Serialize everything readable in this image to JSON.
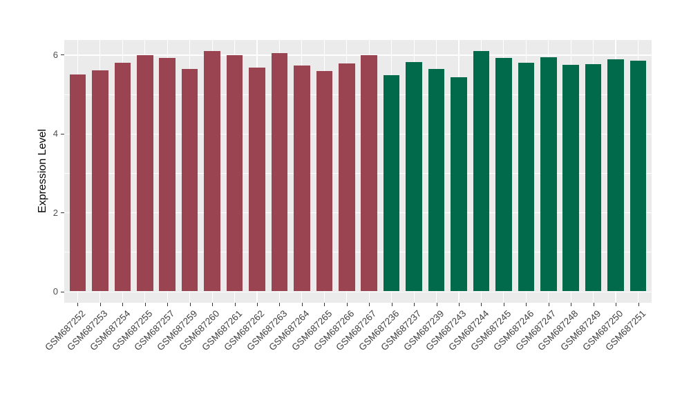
{
  "figure": {
    "background": "#FFFFFF",
    "panel_background": "#EBEBEB",
    "gridline_color": "#FFFFFF",
    "tick_color": "#333333",
    "tick_label_color": "#4D4D4D",
    "axis_title_color": "#000000"
  },
  "chart_data": {
    "type": "bar",
    "title": "",
    "xlabel": "",
    "ylabel": "Expression Level",
    "ylim": [
      -0.3,
      6.43
    ],
    "yticks_major": [
      0,
      2,
      4,
      6
    ],
    "yticks_minor": [
      1,
      3,
      5
    ],
    "grid": true,
    "legend_position": "none",
    "group_colors": {
      "maroon": "#9A4452",
      "green": "#016A4B"
    },
    "bars": [
      {
        "label": "GSM687252",
        "value": 5.5,
        "group": "maroon"
      },
      {
        "label": "GSM687253",
        "value": 5.61,
        "group": "maroon"
      },
      {
        "label": "GSM687254",
        "value": 5.79,
        "group": "maroon"
      },
      {
        "label": "GSM687255",
        "value": 5.99,
        "group": "maroon"
      },
      {
        "label": "GSM687257",
        "value": 5.92,
        "group": "maroon"
      },
      {
        "label": "GSM687259",
        "value": 5.64,
        "group": "maroon"
      },
      {
        "label": "GSM687260",
        "value": 6.1,
        "group": "maroon"
      },
      {
        "label": "GSM687261",
        "value": 5.99,
        "group": "maroon"
      },
      {
        "label": "GSM687262",
        "value": 5.67,
        "group": "maroon"
      },
      {
        "label": "GSM687263",
        "value": 6.04,
        "group": "maroon"
      },
      {
        "label": "GSM687264",
        "value": 5.73,
        "group": "maroon"
      },
      {
        "label": "GSM687265",
        "value": 5.59,
        "group": "maroon"
      },
      {
        "label": "GSM687266",
        "value": 5.77,
        "group": "maroon"
      },
      {
        "label": "GSM687267",
        "value": 5.99,
        "group": "maroon"
      },
      {
        "label": "GSM687236",
        "value": 5.48,
        "group": "green"
      },
      {
        "label": "GSM687237",
        "value": 5.81,
        "group": "green"
      },
      {
        "label": "GSM687239",
        "value": 5.63,
        "group": "green"
      },
      {
        "label": "GSM687243",
        "value": 5.43,
        "group": "green"
      },
      {
        "label": "GSM687244",
        "value": 6.09,
        "group": "green"
      },
      {
        "label": "GSM687245",
        "value": 5.92,
        "group": "green"
      },
      {
        "label": "GSM687246",
        "value": 5.8,
        "group": "green"
      },
      {
        "label": "GSM687247",
        "value": 5.94,
        "group": "green"
      },
      {
        "label": "GSM687248",
        "value": 5.74,
        "group": "green"
      },
      {
        "label": "GSM687249",
        "value": 5.76,
        "group": "green"
      },
      {
        "label": "GSM687250",
        "value": 5.89,
        "group": "green"
      },
      {
        "label": "GSM687251",
        "value": 5.84,
        "group": "green"
      }
    ]
  }
}
